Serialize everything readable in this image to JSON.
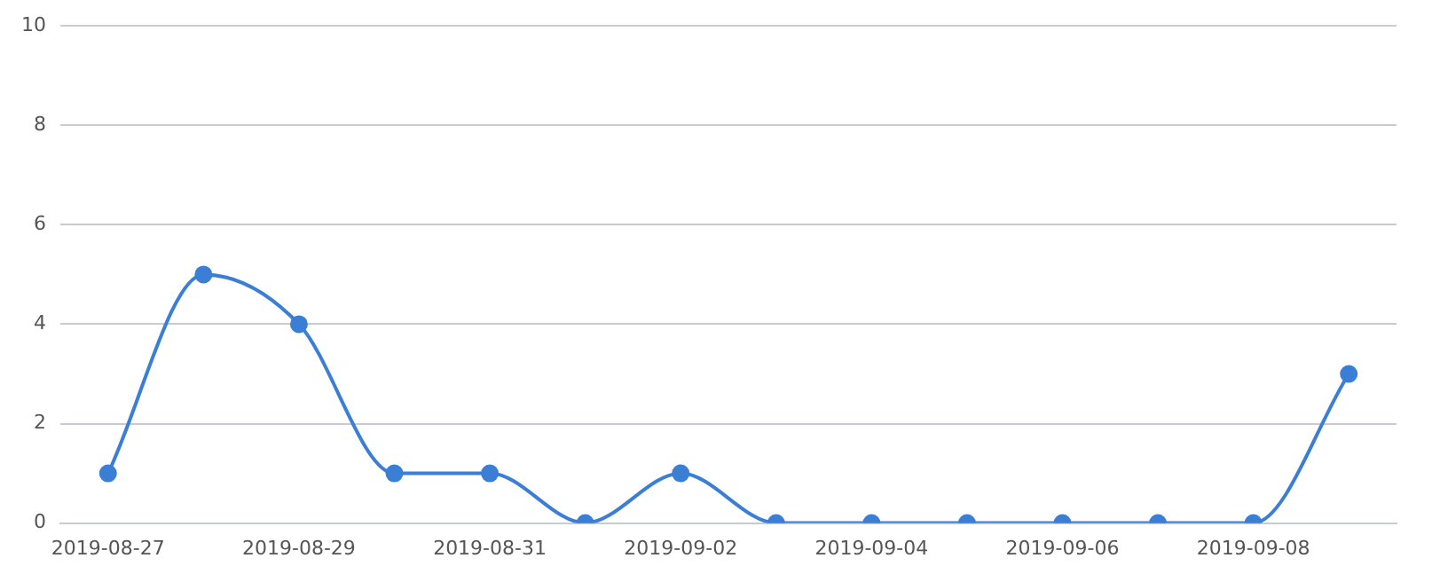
{
  "chart_data": {
    "type": "line",
    "categories": [
      "2019-08-27",
      null,
      "2019-08-29",
      null,
      "2019-08-31",
      null,
      "2019-09-02",
      null,
      "2019-09-04",
      null,
      "2019-09-06",
      null,
      "2019-09-08",
      null
    ],
    "series": [
      {
        "color": "#3a7fd5",
        "values": [
          1,
          5,
          4,
          1,
          1,
          0,
          1,
          0,
          0,
          0,
          0,
          0,
          0,
          3
        ]
      }
    ],
    "ylim": [
      0,
      10
    ],
    "yticks": [
      0,
      2,
      4,
      6,
      8,
      10
    ],
    "grid": "y",
    "marker": "circle",
    "line_style": "solid",
    "legend": false
  }
}
